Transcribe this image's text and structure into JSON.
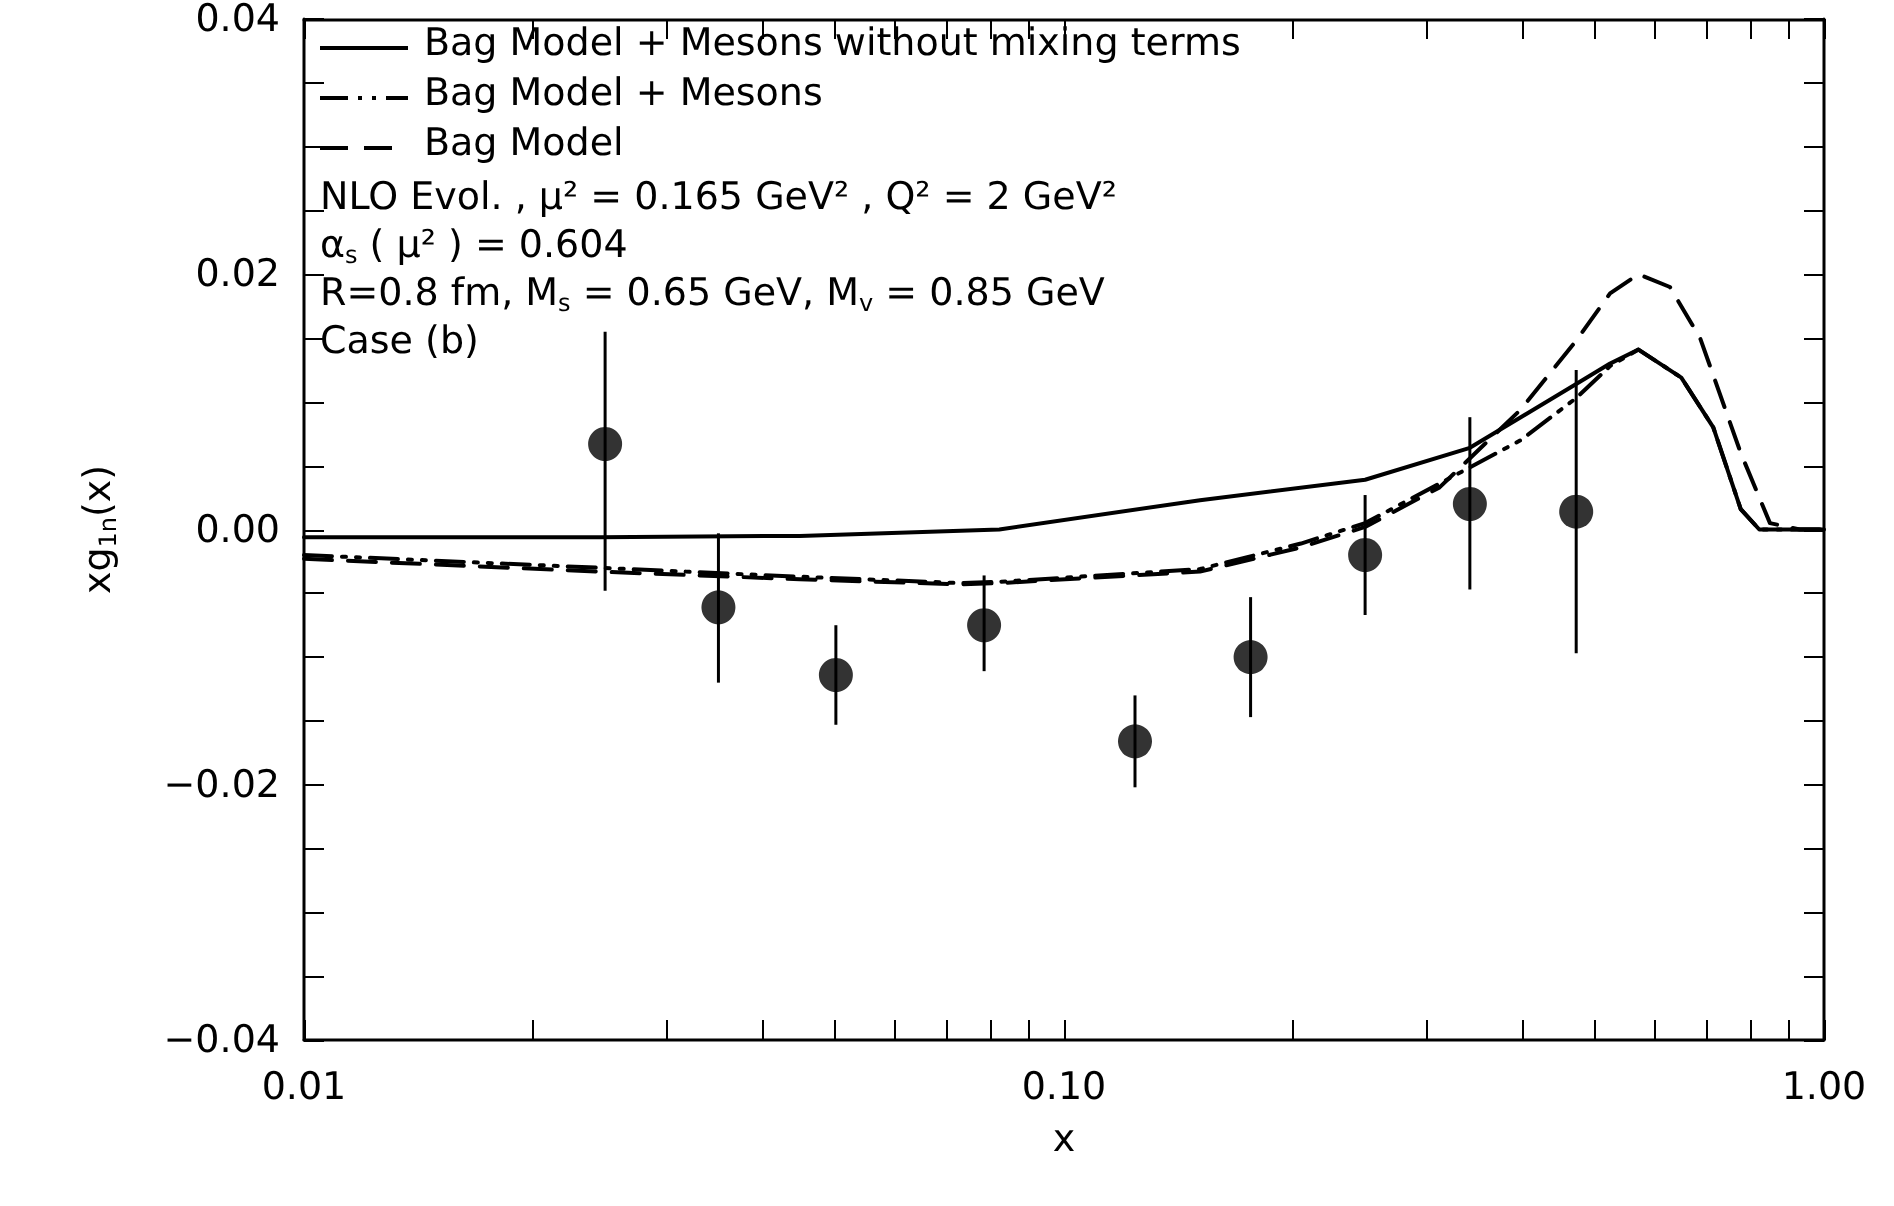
{
  "chart_data": {
    "type": "line",
    "xlabel": "x",
    "ylabel": "xg$_{1n}$(x)",
    "log": "x",
    "legend": "top left",
    "grid": false,
    "xlim": [
      0.01,
      1.0
    ],
    "ylim": [
      -0.04,
      0.04
    ],
    "xticks": [
      {
        "value": 0.01,
        "label": "0.01"
      },
      {
        "value": 0.02,
        "label": null
      },
      {
        "value": 0.03,
        "label": null
      },
      {
        "value": 0.04,
        "label": null
      },
      {
        "value": 0.05,
        "label": null
      },
      {
        "value": 0.06,
        "label": null
      },
      {
        "value": 0.07,
        "label": null
      },
      {
        "value": 0.08,
        "label": null
      },
      {
        "value": 0.09,
        "label": null
      },
      {
        "value": 0.1,
        "label": "0.10"
      },
      {
        "value": 0.2,
        "label": null
      },
      {
        "value": 0.3,
        "label": null
      },
      {
        "value": 0.4,
        "label": null
      },
      {
        "value": 0.5,
        "label": null
      },
      {
        "value": 0.6,
        "label": null
      },
      {
        "value": 0.7,
        "label": null
      },
      {
        "value": 0.8,
        "label": null
      },
      {
        "value": 0.9,
        "label": null
      },
      {
        "value": 1.0,
        "label": "1.00"
      }
    ],
    "yticks": [
      {
        "value": -0.04,
        "label": "−0.04"
      },
      {
        "value": -0.035,
        "label": null
      },
      {
        "value": -0.03,
        "label": null
      },
      {
        "value": -0.025,
        "label": null
      },
      {
        "value": -0.02,
        "label": "−0.02"
      },
      {
        "value": -0.015,
        "label": null
      },
      {
        "value": -0.01,
        "label": null
      },
      {
        "value": -0.005,
        "label": null
      },
      {
        "value": 0,
        "label": "0.00"
      },
      {
        "value": 0.005,
        "label": null
      },
      {
        "value": 0.01,
        "label": null
      },
      {
        "value": 0.015,
        "label": null
      },
      {
        "value": 0.02,
        "label": "0.02"
      },
      {
        "value": 0.025,
        "label": null
      },
      {
        "value": 0.03,
        "label": null
      },
      {
        "value": 0.035,
        "label": null
      },
      {
        "value": 0.04,
        "label": "0.04"
      }
    ],
    "annotations": [
      "NLO Evol. , μ² = 0.165 GeV² , Q² = 2 GeV²",
      "α$_{s}$ ( μ² ) = 0.604",
      "R=0.8 fm, M$_{s}$ = 0.65 GeV, M$_{v}$ = 0.85 GeV",
      "Case (b)"
    ],
    "series": [
      {
        "name": "Bag Model + Mesons without mixing terms",
        "color": "#000000",
        "line_style": "solid",
        "marker": "none",
        "x": [
          0.01,
          0.0245,
          0.0449,
          0.0822,
          0.151,
          0.249,
          0.342,
          0.472,
          0.523,
          0.57,
          0.649,
          0.715,
          0.777,
          0.822,
          1.0
        ],
        "values": [
          -0.0006,
          -0.0006,
          -0.0005,
          0.0,
          0.0023,
          0.0039,
          0.0064,
          0.0114,
          0.013,
          0.0141,
          0.0119,
          0.008,
          0.0016,
          0.0,
          0.0
        ]
      },
      {
        "name": "Bag Model + Mesons",
        "color": "#000000",
        "line_style": "dashdot",
        "marker": "none",
        "x": [
          0.01,
          0.0245,
          0.0449,
          0.0731,
          0.0822,
          0.151,
          0.205,
          0.249,
          0.312,
          0.399,
          0.472,
          0.523,
          0.57,
          0.649,
          0.715,
          0.777,
          0.822,
          1.0
        ],
        "values": [
          -0.002,
          -0.003,
          -0.0037,
          -0.0042,
          -0.0041,
          -0.0031,
          -0.0011,
          0.0005,
          0.0036,
          0.007,
          0.0103,
          0.0128,
          0.0141,
          0.0119,
          0.008,
          0.0016,
          0.0,
          0.0
        ]
      },
      {
        "name": "Bag Model",
        "color": "#000000",
        "line_style": "dashed",
        "marker": "none",
        "x": [
          0.01,
          0.0245,
          0.0449,
          0.0731,
          0.0822,
          0.151,
          0.205,
          0.249,
          0.312,
          0.399,
          0.472,
          0.523,
          0.57,
          0.627,
          0.687,
          0.777,
          0.849,
          0.929,
          1.0
        ],
        "values": [
          -0.0023,
          -0.0033,
          -0.0039,
          -0.0043,
          -0.0042,
          -0.0033,
          -0.0014,
          0.0002,
          0.0033,
          0.0094,
          0.0148,
          0.0185,
          0.02,
          0.019,
          0.015,
          0.006,
          0.0005,
          0.0,
          0.0
        ]
      },
      {
        "type": "scatter",
        "color": "#000000",
        "marker": "circle",
        "x": [
          0.0249,
          0.0351,
          0.0501,
          0.0785,
          0.124,
          0.176,
          0.249,
          0.342,
          0.472
        ],
        "values": [
          0.0067,
          -0.0061,
          -0.0114,
          -0.0075,
          -0.0166,
          -0.01,
          -0.002,
          0.002,
          0.0014
        ],
        "errors": [
          [
            -0.0048,
            0.0155
          ],
          [
            -0.012,
            -0.0003
          ],
          [
            -0.0153,
            -0.0075
          ],
          [
            -0.0111,
            -0.0036
          ],
          [
            -0.0202,
            -0.013
          ],
          [
            -0.0147,
            -0.0053
          ],
          [
            -0.0067,
            0.0027
          ],
          [
            -0.0047,
            0.0088
          ],
          [
            -0.0097,
            0.0125
          ]
        ]
      }
    ]
  }
}
